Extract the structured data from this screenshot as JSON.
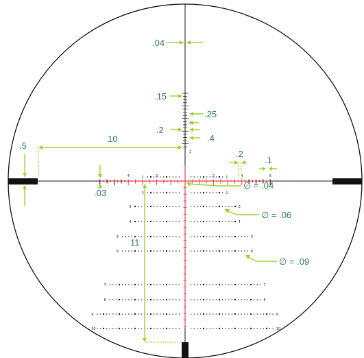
{
  "colors": {
    "reticle": "#111111",
    "center_red": "#e8404a",
    "dimension_green": "#9bd22e",
    "label_text": "#2e7d5b"
  },
  "reticle": {
    "horizontal_scale_labels": [
      "6",
      "4",
      "2",
      "2",
      "4",
      "6"
    ],
    "upper_vertical_labels": [
      "2",
      "4"
    ],
    "holdover_rows": [
      {
        "level": "1",
        "dots_each_side": 11
      },
      {
        "level": "2",
        "dots_each_side": 11
      },
      {
        "level": "3",
        "dots_each_side": 15
      },
      {
        "level": "4",
        "dots_each_side": 15
      },
      {
        "level": "5",
        "dots_each_side": 19
      },
      {
        "level": "6",
        "dots_each_side": 19
      },
      {
        "level": "7",
        "dots_each_side": 23
      },
      {
        "level": "8",
        "dots_each_side": 23
      },
      {
        "level": "9",
        "dots_each_side": 27
      },
      {
        "level": "10",
        "dots_each_side": 27
      }
    ]
  },
  "dimensions": {
    "line_width": ".04",
    "upper_tick_length": ".15",
    "upper_tick_spacing": ".25",
    "center_gap": ".2",
    "hash_spacing": ".4",
    "post_to_center": "10",
    "post_thickness": ".5",
    "hash_height": ".03",
    "dot_spacing_h": ".2",
    "dot_size_h": ".1",
    "center_dot": "∅ = .04",
    "holdover_dot_small": "∅ = .06",
    "holdover_dot_large": "∅ = .09",
    "post_to_bottom": "11"
  }
}
